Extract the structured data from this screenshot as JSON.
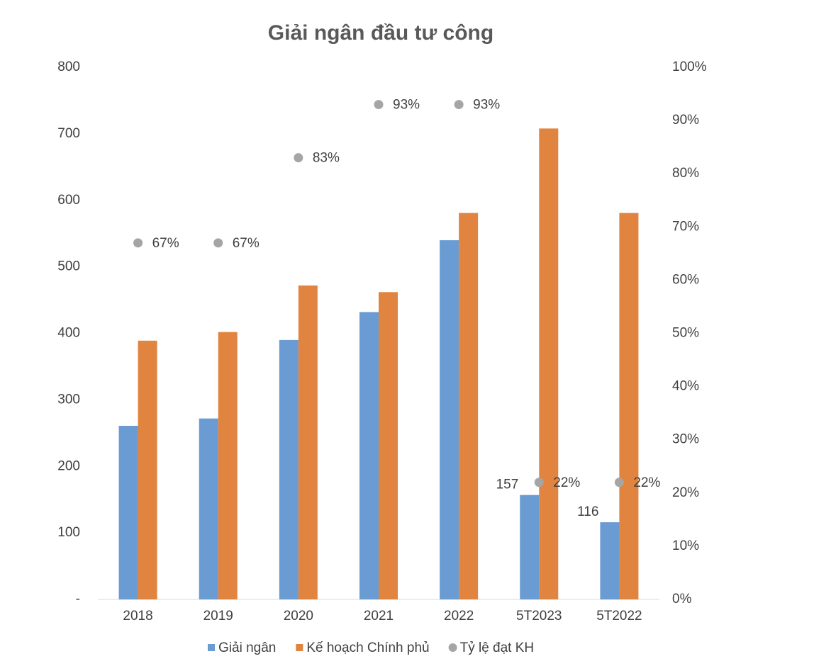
{
  "chart_data": {
    "type": "bar",
    "title": "Giải ngân đầu tư công",
    "categories": [
      "2018",
      "2019",
      "2020",
      "2021",
      "2022",
      "5T2023",
      "5T2022"
    ],
    "series": [
      {
        "name": "Giải ngân",
        "color": "#6a9bd2",
        "values": [
          261,
          272,
          390,
          432,
          540,
          157,
          116
        ],
        "value_labels": [
          null,
          null,
          null,
          null,
          null,
          "157",
          "116"
        ]
      },
      {
        "name": "Kế hoạch Chính phủ",
        "color": "#e0843f",
        "values": [
          389,
          402,
          472,
          462,
          581,
          708,
          581
        ]
      },
      {
        "name": "Tỷ lệ đạt KH",
        "color": "#a5a5a5",
        "type": "scatter",
        "axis": "y2",
        "values": [
          67,
          67,
          83,
          93,
          93,
          22,
          22
        ],
        "value_labels": [
          "67%",
          "67%",
          "83%",
          "93%",
          "93%",
          "22%",
          "22%"
        ]
      }
    ],
    "ylim": [
      0,
      800
    ],
    "yticks": [
      {
        "value": 0,
        "label": "-"
      },
      100,
      200,
      300,
      400,
      500,
      600,
      700,
      800
    ],
    "y2lim": [
      0,
      100
    ],
    "y2ticks": [
      {
        "value": 0,
        "label": "0%"
      },
      {
        "value": 10,
        "label": "10%"
      },
      {
        "value": 20,
        "label": "20%"
      },
      {
        "value": 30,
        "label": "30%"
      },
      {
        "value": 40,
        "label": "40%"
      },
      {
        "value": 50,
        "label": "50%"
      },
      {
        "value": 60,
        "label": "60%"
      },
      {
        "value": 70,
        "label": "70%"
      },
      {
        "value": 80,
        "label": "80%"
      },
      {
        "value": 90,
        "label": "90%"
      },
      {
        "value": 100,
        "label": "100%"
      }
    ],
    "legend": "bottom",
    "grid": false
  }
}
